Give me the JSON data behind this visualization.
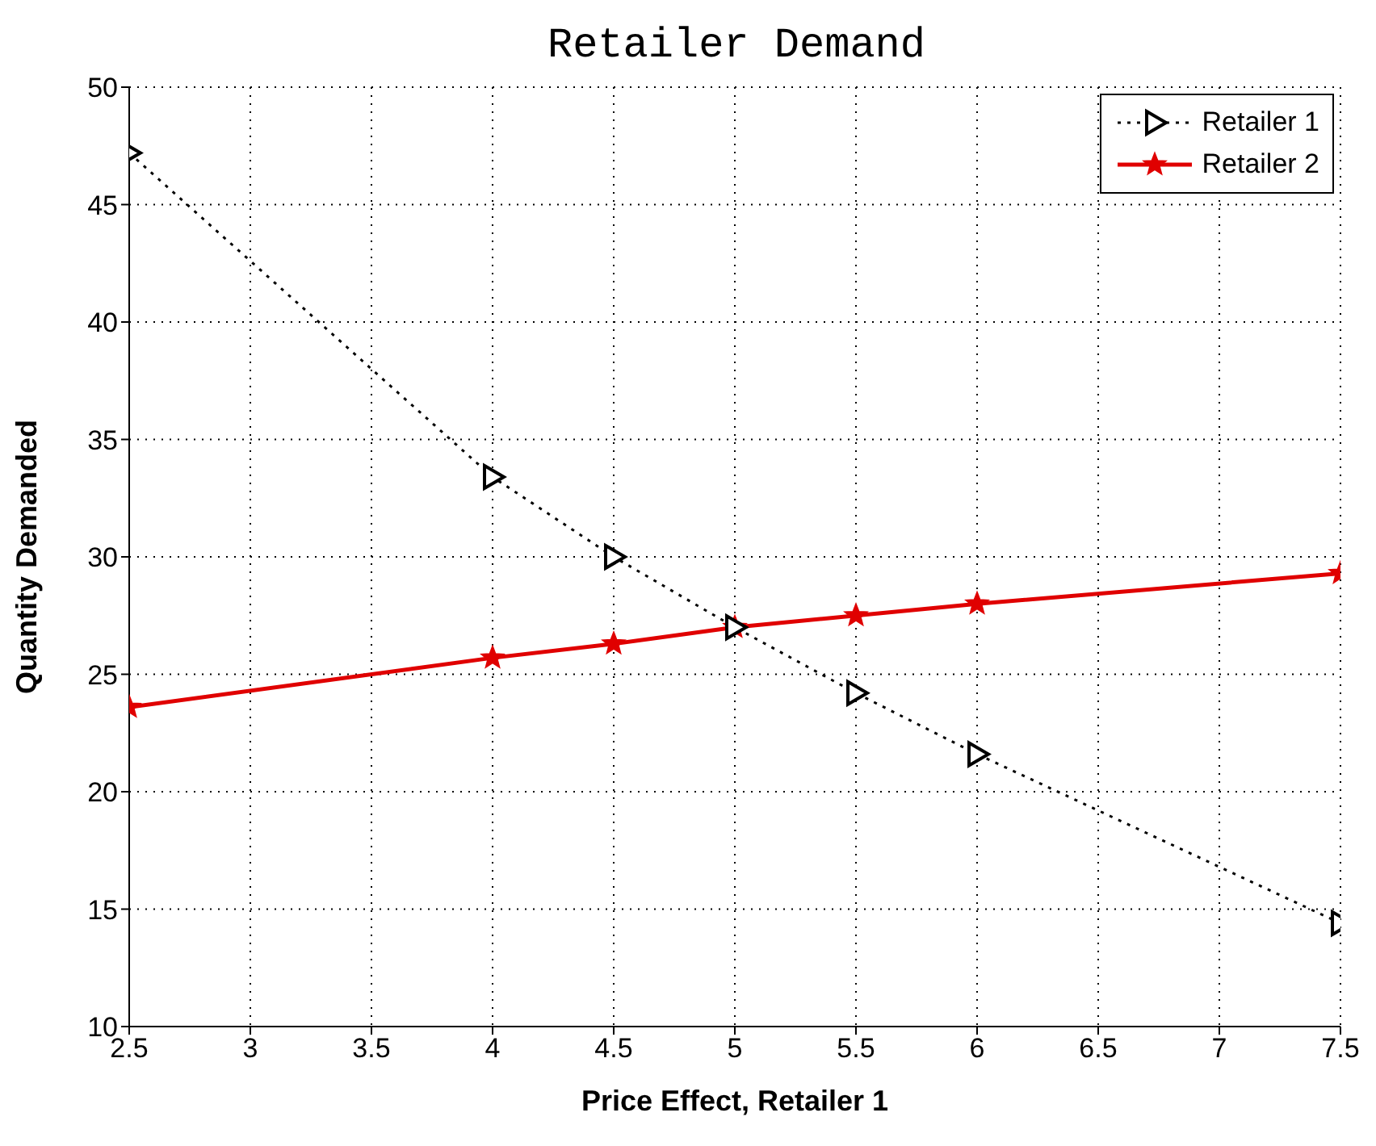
{
  "chart_data": {
    "type": "line",
    "title": "Retailer Demand",
    "xlabel": "Price Effect, Retailer 1",
    "ylabel": "Quantity Demanded",
    "x": [
      2.5,
      4,
      4.5,
      5,
      5.5,
      6,
      7.5
    ],
    "series": [
      {
        "name": "Retailer 1",
        "color": "#000000",
        "values": [
          47.2,
          33.4,
          30.0,
          27.0,
          24.2,
          21.6,
          14.4
        ],
        "marker": "triangle",
        "line_style": "dotted"
      },
      {
        "name": "Retailer 2",
        "color": "#e00000",
        "values": [
          23.6,
          25.7,
          26.3,
          27.0,
          27.5,
          28.0,
          29.3
        ],
        "marker": "star",
        "line_style": "solid"
      }
    ],
    "xlim": [
      2.5,
      7.5
    ],
    "xticks": [
      2.5,
      3,
      3.5,
      4,
      4.5,
      5,
      5.5,
      6,
      6.5,
      7,
      7.5
    ],
    "ylim": [
      10,
      50
    ],
    "yticks": [
      10,
      15,
      20,
      25,
      30,
      35,
      40,
      45,
      50
    ],
    "grid": true,
    "legend": "top right"
  }
}
